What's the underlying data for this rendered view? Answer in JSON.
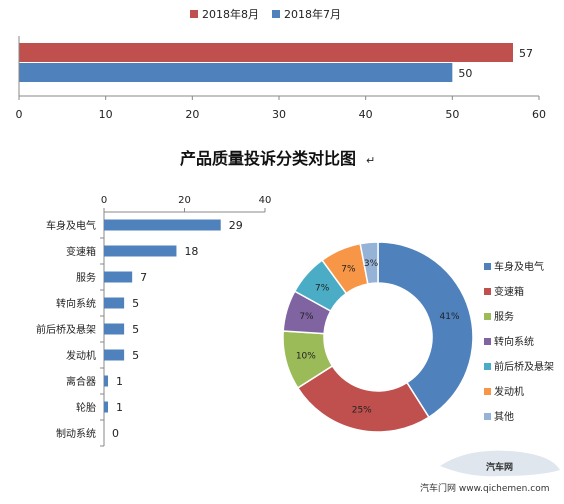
{
  "chart_data": [
    {
      "type": "bar",
      "orientation": "horizontal",
      "title": "",
      "series": [
        {
          "name": "2018年8月",
          "values": [
            57
          ],
          "color": "#c0504d"
        },
        {
          "name": "2018年7月",
          "values": [
            50
          ],
          "color": "#4f81bd"
        }
      ],
      "xlim": [
        0,
        60
      ],
      "x_ticks": [
        0,
        10,
        20,
        30,
        40,
        50,
        60
      ],
      "legend": "top-center"
    },
    {
      "type": "bar",
      "orientation": "horizontal",
      "title": "产品质量投诉分类对比图",
      "categories": [
        "车身及电气",
        "变速箱",
        "服务",
        "转向系统",
        "前后桥及悬架",
        "发动机",
        "离合器",
        "轮胎",
        "制动系统"
      ],
      "values": [
        29,
        18,
        7,
        5,
        5,
        5,
        1,
        1,
        0
      ],
      "color": "#4f81bd",
      "xlim": [
        0,
        40
      ],
      "x_ticks": [
        0,
        20,
        40
      ],
      "axis_position": "top"
    },
    {
      "type": "pie",
      "style": "donut",
      "slices": [
        {
          "label": "车身及电气",
          "percent": 41,
          "color": "#4f81bd"
        },
        {
          "label": "变速箱",
          "percent": 25,
          "color": "#c0504d"
        },
        {
          "label": "服务",
          "percent": 10,
          "color": "#9bbb59"
        },
        {
          "label": "转向系统",
          "percent": 7,
          "color": "#8064a2"
        },
        {
          "label": "前后桥及悬架",
          "percent": 7,
          "color": "#4bacc6"
        },
        {
          "label": "发动机",
          "percent": 7,
          "color": "#f79646"
        },
        {
          "label": "其他",
          "percent": 3,
          "color": "#95b3d7"
        }
      ],
      "legend": "right"
    }
  ],
  "title_mark": "↵",
  "watermark": {
    "logo_text": "汽车网",
    "source": "汽车门网 www.qichemen.com"
  }
}
